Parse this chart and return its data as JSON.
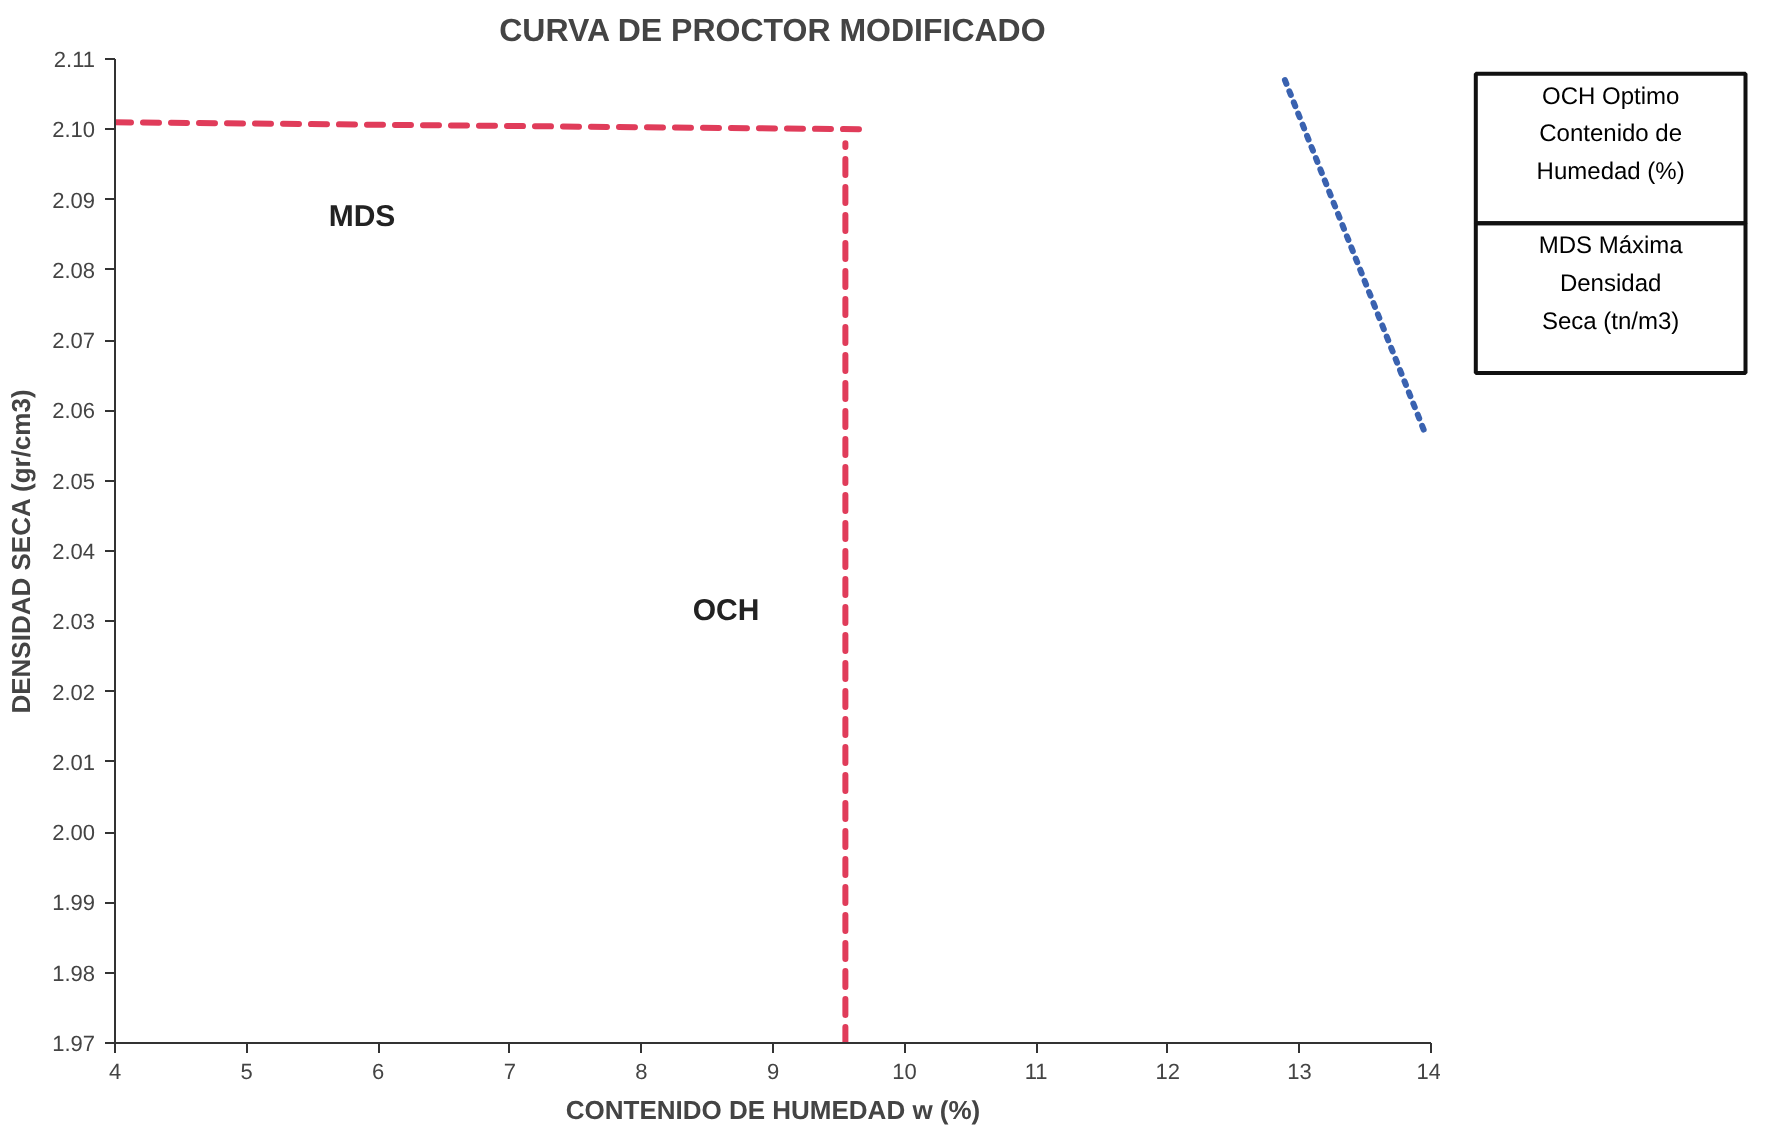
{
  "chart_data": [
    {
      "type": "line",
      "title": "CURVA DE PROCTOR MODIFICADO",
      "xlabel": "CONTENIDO DE HUMEDAD w (%)",
      "ylabel": "DENSIDAD SECA (gr/cm3)",
      "xlim": [
        4,
        14
      ],
      "xticks": [
        4,
        5,
        6,
        7,
        8,
        9,
        10,
        11,
        12,
        13,
        14
      ],
      "ylim": [
        1.97,
        2.11
      ],
      "yticks": [
        {
          "value": 1.97,
          "label": "1.97"
        },
        {
          "value": 1.98,
          "label": "1.98"
        },
        {
          "value": 1.99,
          "label": "1.99"
        },
        {
          "value": 2.0,
          "label": "2.00"
        },
        {
          "value": 2.01,
          "label": "2.01"
        },
        {
          "value": 2.02,
          "label": "2.02"
        },
        {
          "value": 2.03,
          "label": "2.03"
        },
        {
          "value": 2.04,
          "label": "2.04"
        },
        {
          "value": 2.05,
          "label": "2.05"
        },
        {
          "value": 2.06,
          "label": "2.06"
        },
        {
          "value": 2.07,
          "label": "2.07"
        },
        {
          "value": 2.08,
          "label": "2.08"
        },
        {
          "value": 2.09,
          "label": "2.09"
        },
        {
          "value": 2.1,
          "label": "2.10"
        },
        {
          "value": 2.11,
          "label": "2.11"
        }
      ],
      "marker": "none",
      "series": [
        {
          "color": "#3a62b0",
          "line_style": "dotted",
          "x": [
            12.89,
            13.95
          ],
          "values": [
            2.107,
            2.057
          ]
        },
        {
          "color": "#e03c5a",
          "line_style": "dashed",
          "x": [
            4,
            9.67
          ],
          "values": [
            2.101,
            2.1
          ]
        },
        {
          "color": "#e03c5a",
          "line_style": "dashed",
          "x": [
            9.55,
            9.55
          ],
          "values": [
            1.97,
            2.098
          ]
        }
      ],
      "annotations": [
        "MDS",
        "OCH"
      ]
    },
    {
      "type": "other",
      "annotations": [
        "OCH Optimo Contenido de Humedad (%)",
        "MDS Máxima Densidad Seca (tn/m3)"
      ]
    }
  ]
}
